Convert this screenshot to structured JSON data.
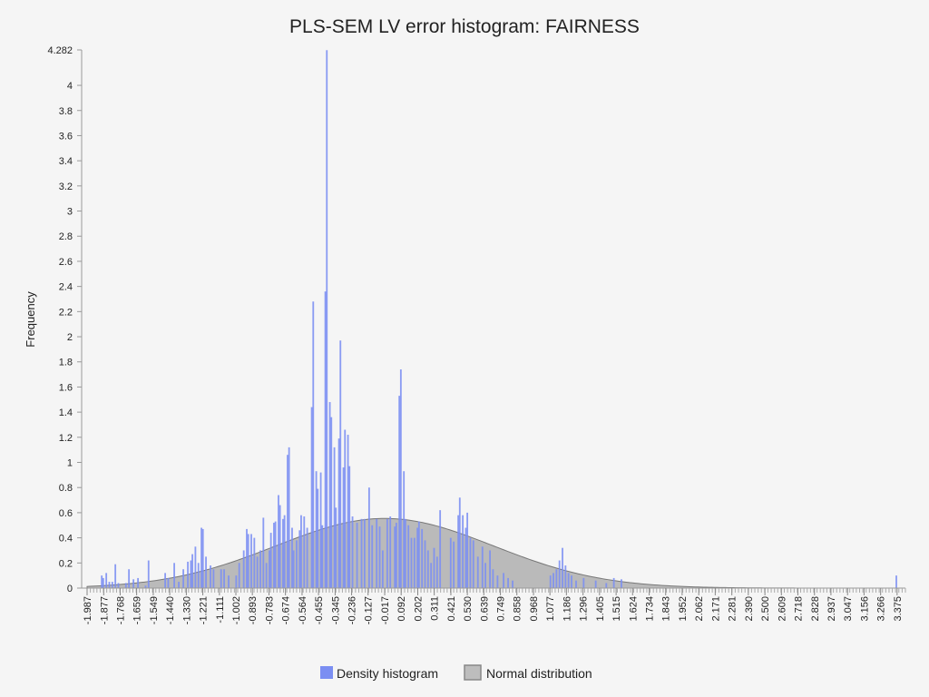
{
  "chart_data": {
    "type": "bar",
    "title": "PLS-SEM LV error histogram: FAIRNESS",
    "xlabel": "",
    "ylabel": "Frequency",
    "ylim": [
      0,
      4.282
    ],
    "xlim": [
      -1.987,
      3.43
    ],
    "grid": false,
    "legend_position": "bottom",
    "y_ticks": [
      "0",
      "0.2",
      "0.4",
      "0.6",
      "0.8",
      "1",
      "1.2",
      "1.4",
      "1.6",
      "1.8",
      "2",
      "2.2",
      "2.4",
      "2.6",
      "2.8",
      "3",
      "3.2",
      "3.4",
      "3.6",
      "3.8",
      "4",
      "4.282"
    ],
    "x_tick_labels": [
      "-1.987",
      "-1.877",
      "-1.768",
      "-1.659",
      "-1.549",
      "-1.440",
      "-1.330",
      "-1.221",
      "-1.111",
      "-1.002",
      "-0.893",
      "-0.783",
      "-0.674",
      "-0.564",
      "-0.455",
      "-0.345",
      "-0.236",
      "-0.127",
      "-0.017",
      "0.092",
      "0.202",
      "0.311",
      "0.421",
      "0.530",
      "0.639",
      "0.749",
      "0.858",
      "0.968",
      "1.077",
      "1.186",
      "1.296",
      "1.405",
      "1.515",
      "1.624",
      "1.734",
      "1.843",
      "1.952",
      "2.062",
      "2.171",
      "2.281",
      "2.390",
      "2.500",
      "2.609",
      "2.718",
      "2.828",
      "2.937",
      "3.047",
      "3.156",
      "3.266",
      "3.375"
    ],
    "bin_width": 0.01095,
    "series": [
      {
        "name": "Density histogram",
        "color": "#7b8ef2",
        "points": [
          [
            -1.89,
            0.1
          ],
          [
            -1.88,
            0.08
          ],
          [
            -1.86,
            0.12
          ],
          [
            -1.84,
            0.05
          ],
          [
            -1.82,
            0.05
          ],
          [
            -1.8,
            0.19
          ],
          [
            -1.78,
            0.04
          ],
          [
            -1.73,
            0.04
          ],
          [
            -1.71,
            0.15
          ],
          [
            -1.68,
            0.07
          ],
          [
            -1.65,
            0.08
          ],
          [
            -1.6,
            0.02
          ],
          [
            -1.58,
            0.22
          ],
          [
            -1.47,
            0.12
          ],
          [
            -1.45,
            0.08
          ],
          [
            -1.41,
            0.2
          ],
          [
            -1.38,
            0.05
          ],
          [
            -1.35,
            0.15
          ],
          [
            -1.32,
            0.21
          ],
          [
            -1.3,
            0.22
          ],
          [
            -1.29,
            0.27
          ],
          [
            -1.27,
            0.33
          ],
          [
            -1.25,
            0.2
          ],
          [
            -1.23,
            0.48
          ],
          [
            -1.22,
            0.47
          ],
          [
            -1.2,
            0.25
          ],
          [
            -1.17,
            0.18
          ],
          [
            -1.15,
            0.15
          ],
          [
            -1.1,
            0.15
          ],
          [
            -1.08,
            0.15
          ],
          [
            -1.05,
            0.1
          ],
          [
            -1.0,
            0.1
          ],
          [
            -0.98,
            0.2
          ],
          [
            -0.95,
            0.3
          ],
          [
            -0.93,
            0.47
          ],
          [
            -0.92,
            0.43
          ],
          [
            -0.9,
            0.43
          ],
          [
            -0.88,
            0.4
          ],
          [
            -0.86,
            0.25
          ],
          [
            -0.84,
            0.3
          ],
          [
            -0.82,
            0.56
          ],
          [
            -0.8,
            0.2
          ],
          [
            -0.78,
            0.3
          ],
          [
            -0.77,
            0.44
          ],
          [
            -0.75,
            0.52
          ],
          [
            -0.74,
            0.53
          ],
          [
            -0.72,
            0.74
          ],
          [
            -0.71,
            0.66
          ],
          [
            -0.69,
            0.55
          ],
          [
            -0.68,
            0.58
          ],
          [
            -0.66,
            1.06
          ],
          [
            -0.65,
            1.12
          ],
          [
            -0.63,
            0.48
          ],
          [
            -0.62,
            0.3
          ],
          [
            -0.6,
            0.38
          ],
          [
            -0.58,
            0.46
          ],
          [
            -0.57,
            0.58
          ],
          [
            -0.55,
            0.57
          ],
          [
            -0.53,
            0.48
          ],
          [
            -0.5,
            1.44
          ],
          [
            -0.49,
            2.28
          ],
          [
            -0.47,
            0.93
          ],
          [
            -0.46,
            0.79
          ],
          [
            -0.44,
            0.92
          ],
          [
            -0.43,
            0.5
          ],
          [
            -0.41,
            2.36
          ],
          [
            -0.4,
            4.28
          ],
          [
            -0.38,
            1.48
          ],
          [
            -0.37,
            1.36
          ],
          [
            -0.35,
            1.12
          ],
          [
            -0.34,
            0.64
          ],
          [
            -0.32,
            1.19
          ],
          [
            -0.31,
            1.97
          ],
          [
            -0.29,
            0.96
          ],
          [
            -0.28,
            1.26
          ],
          [
            -0.26,
            1.22
          ],
          [
            -0.25,
            0.97
          ],
          [
            -0.23,
            0.57
          ],
          [
            -0.2,
            0.52
          ],
          [
            -0.17,
            0.55
          ],
          [
            -0.15,
            0.55
          ],
          [
            -0.12,
            0.8
          ],
          [
            -0.1,
            0.5
          ],
          [
            -0.07,
            0.55
          ],
          [
            -0.05,
            0.49
          ],
          [
            -0.03,
            0.3
          ],
          [
            0.0,
            0.55
          ],
          [
            0.02,
            0.57
          ],
          [
            0.05,
            0.49
          ],
          [
            0.06,
            0.52
          ],
          [
            0.08,
            1.53
          ],
          [
            0.09,
            1.74
          ],
          [
            0.11,
            0.93
          ],
          [
            0.12,
            0.55
          ],
          [
            0.14,
            0.5
          ],
          [
            0.16,
            0.4
          ],
          [
            0.18,
            0.4
          ],
          [
            0.2,
            0.48
          ],
          [
            0.21,
            0.53
          ],
          [
            0.23,
            0.47
          ],
          [
            0.25,
            0.38
          ],
          [
            0.27,
            0.3
          ],
          [
            0.29,
            0.2
          ],
          [
            0.31,
            0.32
          ],
          [
            0.33,
            0.25
          ],
          [
            0.35,
            0.62
          ],
          [
            0.42,
            0.4
          ],
          [
            0.44,
            0.37
          ],
          [
            0.47,
            0.58
          ],
          [
            0.48,
            0.72
          ],
          [
            0.5,
            0.58
          ],
          [
            0.52,
            0.48
          ],
          [
            0.53,
            0.6
          ],
          [
            0.55,
            0.4
          ],
          [
            0.57,
            0.38
          ],
          [
            0.6,
            0.25
          ],
          [
            0.63,
            0.33
          ],
          [
            0.65,
            0.2
          ],
          [
            0.68,
            0.3
          ],
          [
            0.7,
            0.15
          ],
          [
            0.73,
            0.1
          ],
          [
            0.77,
            0.12
          ],
          [
            0.8,
            0.08
          ],
          [
            0.83,
            0.06
          ],
          [
            1.08,
            0.1
          ],
          [
            1.1,
            0.12
          ],
          [
            1.12,
            0.15
          ],
          [
            1.14,
            0.22
          ],
          [
            1.16,
            0.32
          ],
          [
            1.18,
            0.18
          ],
          [
            1.2,
            0.12
          ],
          [
            1.22,
            0.1
          ],
          [
            1.25,
            0.06
          ],
          [
            1.3,
            0.08
          ],
          [
            1.38,
            0.06
          ],
          [
            1.45,
            0.04
          ],
          [
            1.5,
            0.08
          ],
          [
            1.55,
            0.07
          ],
          [
            3.37,
            0.1
          ]
        ]
      },
      {
        "name": "Normal distribution",
        "color": "#888888",
        "mean": -0.017,
        "sd": 0.72,
        "peak": 0.554
      }
    ]
  }
}
